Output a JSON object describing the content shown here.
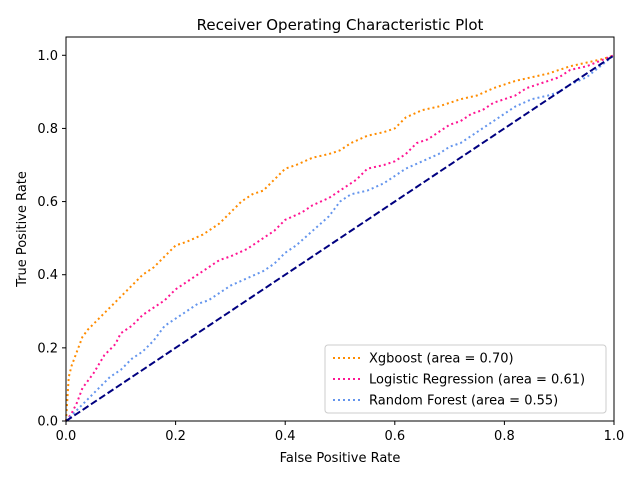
{
  "chart_data": {
    "type": "line",
    "title": "Receiver Operating Characteristic Plot",
    "xlabel": "False Positive Rate",
    "ylabel": "True Positive Rate",
    "xlim": [
      0.0,
      1.0
    ],
    "ylim": [
      0.0,
      1.05
    ],
    "xticks": [
      "0.0",
      "0.2",
      "0.4",
      "0.6",
      "0.8",
      "1.0"
    ],
    "yticks": [
      "0.0",
      "0.2",
      "0.4",
      "0.6",
      "0.8",
      "1.0"
    ],
    "grid": false,
    "legend_position": "lower-right",
    "series": [
      {
        "name": "Xgboost (area = 0.70)",
        "color": "#ff8c00",
        "style": "dotted",
        "x": [
          0.0,
          0.005,
          0.01,
          0.02,
          0.03,
          0.04,
          0.06,
          0.08,
          0.1,
          0.12,
          0.14,
          0.16,
          0.18,
          0.2,
          0.22,
          0.25,
          0.28,
          0.3,
          0.32,
          0.34,
          0.36,
          0.38,
          0.4,
          0.42,
          0.45,
          0.48,
          0.5,
          0.52,
          0.55,
          0.58,
          0.6,
          0.62,
          0.65,
          0.68,
          0.7,
          0.72,
          0.75,
          0.78,
          0.8,
          0.82,
          0.85,
          0.88,
          0.9,
          0.92,
          0.95,
          0.98,
          1.0
        ],
        "y": [
          0.0,
          0.12,
          0.15,
          0.19,
          0.23,
          0.25,
          0.28,
          0.31,
          0.34,
          0.37,
          0.4,
          0.42,
          0.45,
          0.48,
          0.49,
          0.51,
          0.54,
          0.57,
          0.6,
          0.62,
          0.63,
          0.66,
          0.69,
          0.7,
          0.72,
          0.73,
          0.74,
          0.76,
          0.78,
          0.79,
          0.8,
          0.83,
          0.85,
          0.86,
          0.87,
          0.88,
          0.89,
          0.91,
          0.92,
          0.93,
          0.94,
          0.95,
          0.96,
          0.97,
          0.98,
          0.99,
          1.0
        ]
      },
      {
        "name": "Logistic Regression (area = 0.61)",
        "color": "#ff1493",
        "style": "dotted",
        "x": [
          0.0,
          0.01,
          0.02,
          0.03,
          0.05,
          0.07,
          0.09,
          0.1,
          0.12,
          0.14,
          0.16,
          0.18,
          0.2,
          0.22,
          0.25,
          0.28,
          0.3,
          0.33,
          0.35,
          0.38,
          0.4,
          0.43,
          0.45,
          0.48,
          0.5,
          0.53,
          0.55,
          0.58,
          0.6,
          0.62,
          0.64,
          0.66,
          0.68,
          0.7,
          0.72,
          0.74,
          0.76,
          0.78,
          0.8,
          0.82,
          0.84,
          0.86,
          0.88,
          0.9,
          0.92,
          0.95,
          1.0
        ],
        "y": [
          0.0,
          0.02,
          0.05,
          0.09,
          0.13,
          0.18,
          0.21,
          0.24,
          0.26,
          0.29,
          0.31,
          0.33,
          0.36,
          0.38,
          0.41,
          0.44,
          0.45,
          0.47,
          0.49,
          0.52,
          0.55,
          0.57,
          0.59,
          0.61,
          0.63,
          0.66,
          0.69,
          0.7,
          0.71,
          0.73,
          0.76,
          0.77,
          0.79,
          0.81,
          0.82,
          0.84,
          0.85,
          0.87,
          0.88,
          0.89,
          0.91,
          0.92,
          0.93,
          0.94,
          0.96,
          0.97,
          1.0
        ]
      },
      {
        "name": "Random Forest (area = 0.55)",
        "color": "#6495ed",
        "style": "dotted",
        "x": [
          0.0,
          0.02,
          0.04,
          0.06,
          0.08,
          0.1,
          0.12,
          0.14,
          0.16,
          0.18,
          0.2,
          0.22,
          0.24,
          0.26,
          0.28,
          0.3,
          0.33,
          0.36,
          0.38,
          0.4,
          0.42,
          0.45,
          0.48,
          0.5,
          0.52,
          0.55,
          0.58,
          0.6,
          0.62,
          0.65,
          0.68,
          0.7,
          0.72,
          0.75,
          0.78,
          0.8,
          0.82,
          0.85,
          0.88,
          0.9,
          0.92,
          0.95,
          1.0
        ],
        "y": [
          0.0,
          0.03,
          0.06,
          0.09,
          0.12,
          0.14,
          0.17,
          0.19,
          0.22,
          0.26,
          0.28,
          0.3,
          0.32,
          0.33,
          0.35,
          0.37,
          0.39,
          0.41,
          0.43,
          0.46,
          0.48,
          0.52,
          0.56,
          0.6,
          0.62,
          0.63,
          0.65,
          0.67,
          0.69,
          0.71,
          0.73,
          0.75,
          0.76,
          0.79,
          0.82,
          0.84,
          0.86,
          0.88,
          0.89,
          0.9,
          0.92,
          0.94,
          1.0
        ]
      },
      {
        "name": "",
        "color": "#000080",
        "style": "dashed",
        "x": [
          0.0,
          1.0
        ],
        "y": [
          0.0,
          1.0
        ]
      }
    ]
  }
}
